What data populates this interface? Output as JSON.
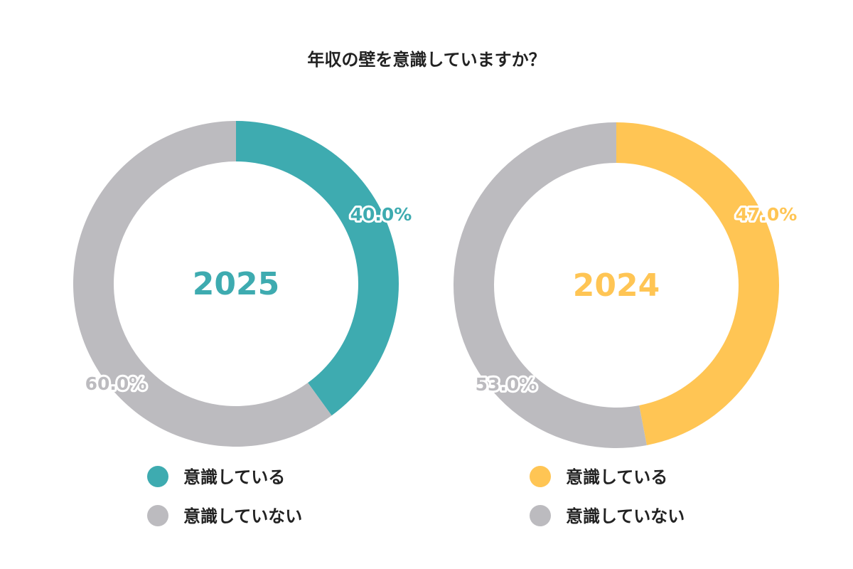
{
  "title": "年収の壁を意識していますか？",
  "colors": {
    "gray": "#bcbbbf",
    "teal": "#3eabb0",
    "yellow": "#ffc554"
  },
  "chart_data": [
    {
      "type": "pie",
      "center_label": "2025",
      "slices": [
        {
          "label": "意識している",
          "value": 40.0,
          "value_label": "40.0%",
          "color": "#3eabb0"
        },
        {
          "label": "意識していない",
          "value": 60.0,
          "value_label": "60.0%",
          "color": "#bcbbbf"
        }
      ],
      "legend": [
        {
          "label": "意識している",
          "color": "#3eabb0"
        },
        {
          "label": "意識していない",
          "color": "#bcbbbf"
        }
      ]
    },
    {
      "type": "pie",
      "center_label": "2024",
      "slices": [
        {
          "label": "意識している",
          "value": 47.0,
          "value_label": "47.0%",
          "color": "#ffc554"
        },
        {
          "label": "意識していない",
          "value": 53.0,
          "value_label": "53.0%",
          "color": "#bcbbbf"
        }
      ],
      "legend": [
        {
          "label": "意識している",
          "color": "#ffc554"
        },
        {
          "label": "意識していない",
          "color": "#bcbbbf"
        }
      ]
    }
  ]
}
